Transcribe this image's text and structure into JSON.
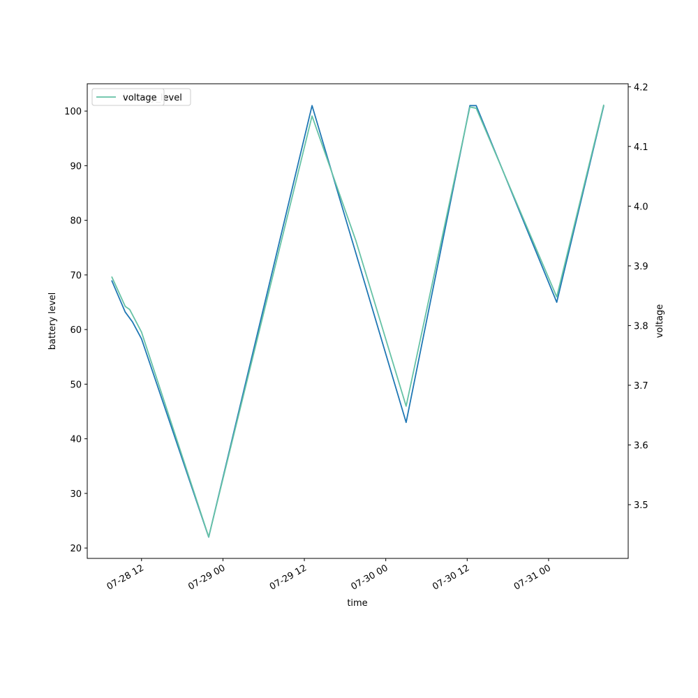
{
  "chart_data": {
    "type": "line",
    "x_label": "time",
    "y_label": "battery level",
    "y2_label": "voltage",
    "xlim": [
      "07-28 04:00",
      "07-31 11:44"
    ],
    "xticks": [
      "07-28 12",
      "07-29 00",
      "07-29 12",
      "07-30 00",
      "07-30 12",
      "07-31 00"
    ],
    "ylim": [
      18.1,
      105
    ],
    "yticks": [
      20,
      30,
      40,
      50,
      60,
      70,
      80,
      90,
      100
    ],
    "y2lim": [
      3.41,
      4.205
    ],
    "y2ticks": [
      3.5,
      3.6,
      3.7,
      3.8,
      3.9,
      {
        "value": 4.0,
        "label": "4.0"
      },
      4.1,
      4.2
    ],
    "legend": "upper left",
    "series": [
      {
        "name": "battery_level",
        "color": "#1f77b4",
        "x": [
          "07-28 07:36",
          "07-28 09:36",
          "07-28 10:40",
          "07-28 12:00",
          "07-28 21:54",
          "07-29 13:08",
          "07-30 03:00",
          "07-30 12:24",
          "07-30 13:20",
          "07-31 01:12",
          "07-31 08:08"
        ],
        "values": [
          69,
          63.2,
          61.4,
          58.3,
          22,
          101,
          43,
          101,
          101,
          65,
          101
        ]
      },
      {
        "name": "voltage",
        "color": "#66c2a5",
        "axis": "y2",
        "x": [
          "07-28 07:36",
          "07-28 09:36",
          "07-28 10:15",
          "07-28 12:00",
          "07-28 21:54",
          "07-29 13:08",
          "07-29 19:36",
          "07-30 03:00",
          "07-30 12:24",
          "07-30 13:20",
          "07-31 01:12",
          "07-31 08:08"
        ],
        "values": [
          3.882,
          3.832,
          3.827,
          3.789,
          3.446,
          4.151,
          3.942,
          3.665,
          4.166,
          4.164,
          3.848,
          4.17
        ]
      }
    ]
  }
}
